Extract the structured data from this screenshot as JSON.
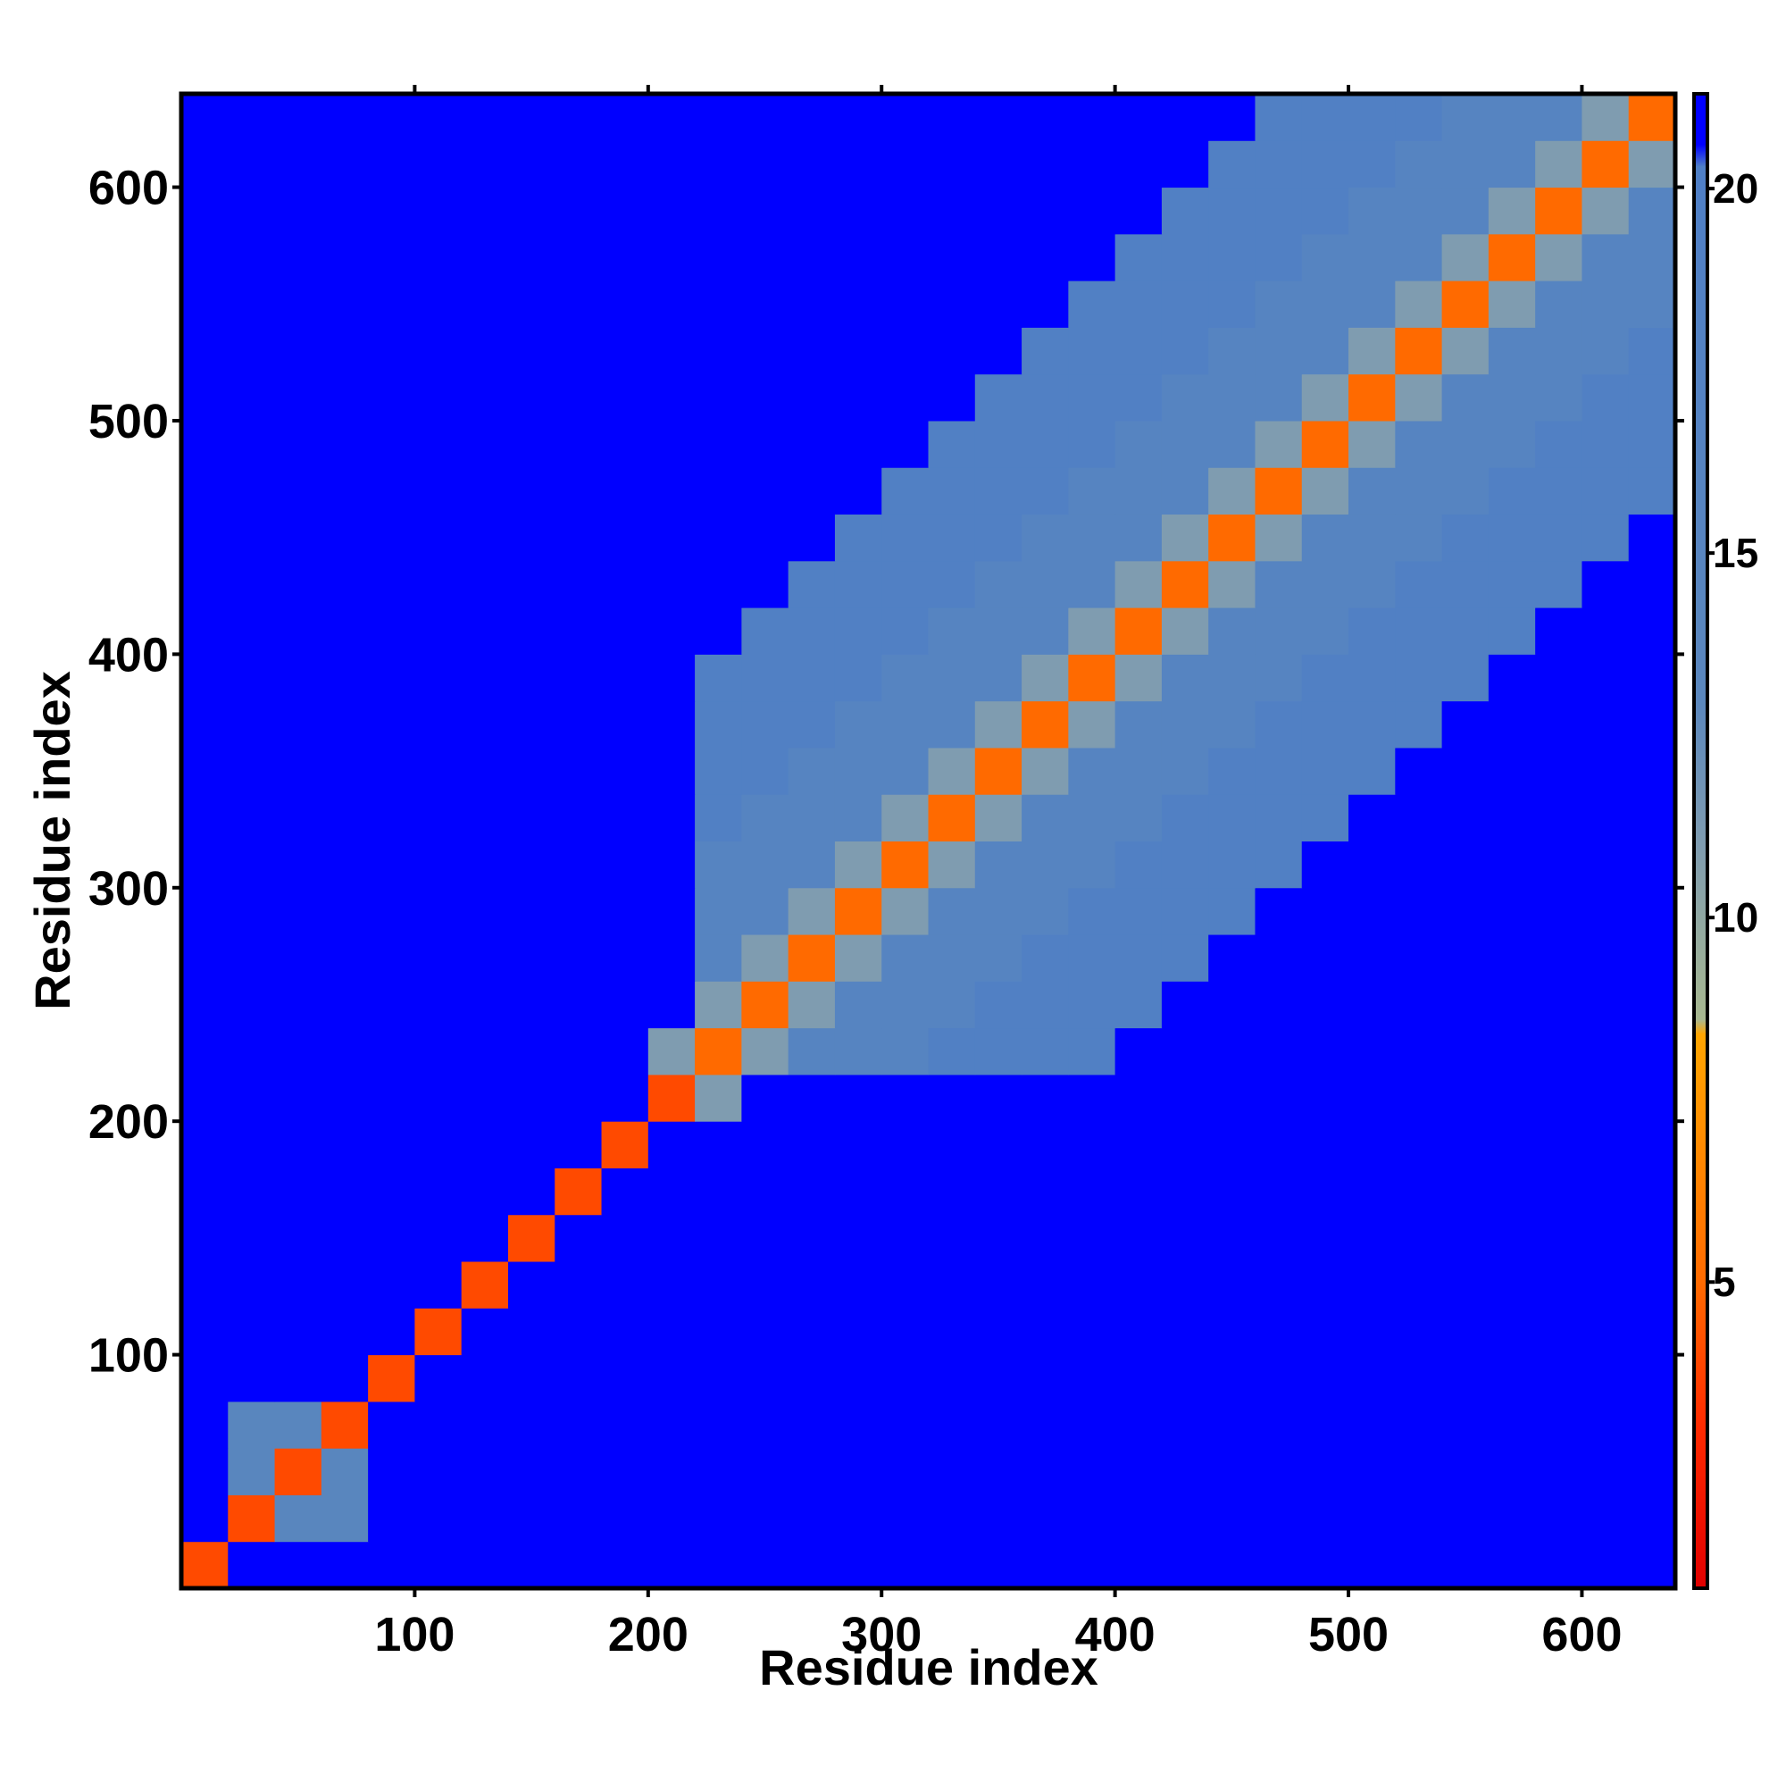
{
  "chart_data": {
    "type": "heatmap",
    "xlabel": "Residue index",
    "ylabel": "Residue index",
    "xlim": [
      0,
      640
    ],
    "ylim": [
      0,
      640
    ],
    "xticks": [
      100,
      200,
      300,
      400,
      500,
      600
    ],
    "yticks": [
      100,
      200,
      300,
      400,
      500,
      600
    ],
    "xbins": [
      0,
      20,
      40,
      60,
      80,
      100,
      120,
      140,
      160,
      180,
      200,
      220,
      240,
      260,
      280,
      300,
      320,
      340,
      360,
      380,
      400,
      420,
      440,
      460,
      480,
      500,
      520,
      540,
      560,
      580,
      600,
      620,
      640
    ],
    "ybins": [
      0,
      20,
      40,
      60,
      80,
      100,
      120,
      140,
      160,
      180,
      200,
      220,
      240,
      260,
      280,
      300,
      320,
      340,
      360,
      380,
      400,
      420,
      440,
      460,
      480,
      500,
      520,
      540,
      560,
      580,
      600,
      620,
      640
    ],
    "z": [
      [
        4,
        21,
        21,
        21,
        21,
        21,
        21,
        21,
        21,
        21,
        21,
        21,
        21,
        21,
        21,
        21,
        21,
        21,
        21,
        21,
        21,
        21,
        21,
        21,
        21,
        21,
        21,
        21,
        21,
        21,
        21,
        21
      ],
      [
        21,
        4,
        14,
        14,
        21,
        21,
        21,
        21,
        21,
        21,
        21,
        21,
        21,
        21,
        21,
        21,
        21,
        21,
        21,
        21,
        21,
        21,
        21,
        21,
        21,
        21,
        21,
        21,
        21,
        21,
        21,
        21
      ],
      [
        21,
        14,
        4,
        14,
        21,
        21,
        21,
        21,
        21,
        21,
        21,
        21,
        21,
        21,
        21,
        21,
        21,
        21,
        21,
        21,
        21,
        21,
        21,
        21,
        21,
        21,
        21,
        21,
        21,
        21,
        21,
        21
      ],
      [
        21,
        14,
        14,
        4,
        21,
        21,
        21,
        21,
        21,
        21,
        21,
        21,
        21,
        21,
        21,
        21,
        21,
        21,
        21,
        21,
        21,
        21,
        21,
        21,
        21,
        21,
        21,
        21,
        21,
        21,
        21,
        21
      ],
      [
        21,
        21,
        21,
        21,
        4,
        21,
        21,
        21,
        21,
        21,
        21,
        21,
        21,
        21,
        21,
        21,
        21,
        21,
        21,
        21,
        21,
        21,
        21,
        21,
        21,
        21,
        21,
        21,
        21,
        21,
        21,
        21
      ],
      [
        21,
        21,
        21,
        21,
        21,
        4,
        21,
        21,
        21,
        21,
        21,
        21,
        21,
        21,
        21,
        21,
        21,
        21,
        21,
        21,
        21,
        21,
        21,
        21,
        21,
        21,
        21,
        21,
        21,
        21,
        21,
        21
      ],
      [
        21,
        21,
        21,
        21,
        21,
        21,
        4,
        21,
        21,
        21,
        21,
        21,
        21,
        21,
        21,
        21,
        21,
        21,
        21,
        21,
        21,
        21,
        21,
        21,
        21,
        21,
        21,
        21,
        21,
        21,
        21,
        21
      ],
      [
        21,
        21,
        21,
        21,
        21,
        21,
        21,
        4,
        21,
        21,
        21,
        21,
        21,
        21,
        21,
        21,
        21,
        21,
        21,
        21,
        21,
        21,
        21,
        21,
        21,
        21,
        21,
        21,
        21,
        21,
        21,
        21
      ],
      [
        21,
        21,
        21,
        21,
        21,
        21,
        21,
        21,
        4,
        21,
        21,
        21,
        21,
        21,
        21,
        21,
        21,
        21,
        21,
        21,
        21,
        21,
        21,
        21,
        21,
        21,
        21,
        21,
        21,
        21,
        21,
        21
      ],
      [
        21,
        21,
        21,
        21,
        21,
        21,
        21,
        21,
        21,
        4,
        21,
        21,
        21,
        21,
        21,
        21,
        21,
        21,
        21,
        21,
        21,
        21,
        21,
        21,
        21,
        21,
        21,
        21,
        21,
        21,
        21,
        21
      ],
      [
        21,
        21,
        21,
        21,
        21,
        21,
        21,
        21,
        21,
        21,
        4,
        11,
        21,
        21,
        21,
        21,
        21,
        21,
        21,
        21,
        21,
        21,
        21,
        21,
        21,
        21,
        21,
        21,
        21,
        21,
        21,
        21
      ],
      [
        21,
        21,
        21,
        21,
        21,
        21,
        21,
        21,
        21,
        21,
        11,
        5,
        11,
        16,
        16,
        16,
        19,
        19,
        19,
        19,
        21,
        21,
        21,
        21,
        21,
        21,
        21,
        21,
        21,
        21,
        21,
        21
      ],
      [
        21,
        21,
        21,
        21,
        21,
        21,
        21,
        21,
        21,
        21,
        21,
        11,
        5,
        11,
        16,
        16,
        16,
        19,
        19,
        19,
        19,
        21,
        21,
        21,
        21,
        21,
        21,
        21,
        21,
        21,
        21,
        21
      ],
      [
        21,
        21,
        21,
        21,
        21,
        21,
        21,
        21,
        21,
        21,
        21,
        16,
        11,
        5,
        11,
        16,
        16,
        16,
        19,
        19,
        19,
        19,
        21,
        21,
        21,
        21,
        21,
        21,
        21,
        21,
        21,
        21
      ],
      [
        21,
        21,
        21,
        21,
        21,
        21,
        21,
        21,
        21,
        21,
        21,
        16,
        16,
        11,
        5,
        11,
        16,
        16,
        16,
        19,
        19,
        19,
        19,
        21,
        21,
        21,
        21,
        21,
        21,
        21,
        21,
        21
      ],
      [
        21,
        21,
        21,
        21,
        21,
        21,
        21,
        21,
        21,
        21,
        21,
        16,
        16,
        16,
        11,
        5,
        11,
        16,
        16,
        16,
        19,
        19,
        19,
        19,
        21,
        21,
        21,
        21,
        21,
        21,
        21,
        21
      ],
      [
        21,
        21,
        21,
        21,
        21,
        21,
        21,
        21,
        21,
        21,
        21,
        19,
        16,
        16,
        16,
        11,
        5,
        11,
        16,
        16,
        16,
        19,
        19,
        19,
        19,
        21,
        21,
        21,
        21,
        21,
        21,
        21
      ],
      [
        21,
        21,
        21,
        21,
        21,
        21,
        21,
        21,
        21,
        21,
        21,
        19,
        19,
        16,
        16,
        16,
        11,
        5,
        11,
        16,
        16,
        16,
        19,
        19,
        19,
        19,
        21,
        21,
        21,
        21,
        21,
        21
      ],
      [
        21,
        21,
        21,
        21,
        21,
        21,
        21,
        21,
        21,
        21,
        21,
        19,
        19,
        19,
        16,
        16,
        16,
        11,
        5,
        11,
        16,
        16,
        16,
        19,
        19,
        19,
        19,
        21,
        21,
        21,
        21,
        21
      ],
      [
        21,
        21,
        21,
        21,
        21,
        21,
        21,
        21,
        21,
        21,
        21,
        19,
        19,
        19,
        19,
        16,
        16,
        16,
        11,
        5,
        11,
        16,
        16,
        16,
        19,
        19,
        19,
        19,
        21,
        21,
        21,
        21
      ],
      [
        21,
        21,
        21,
        21,
        21,
        21,
        21,
        21,
        21,
        21,
        21,
        21,
        19,
        19,
        19,
        19,
        16,
        16,
        16,
        11,
        5,
        11,
        16,
        16,
        16,
        19,
        19,
        19,
        19,
        21,
        21,
        21
      ],
      [
        21,
        21,
        21,
        21,
        21,
        21,
        21,
        21,
        21,
        21,
        21,
        21,
        21,
        19,
        19,
        19,
        19,
        16,
        16,
        16,
        11,
        5,
        11,
        16,
        16,
        16,
        19,
        19,
        19,
        19,
        21,
        21
      ],
      [
        21,
        21,
        21,
        21,
        21,
        21,
        21,
        21,
        21,
        21,
        21,
        21,
        21,
        21,
        19,
        19,
        19,
        19,
        16,
        16,
        16,
        11,
        5,
        11,
        16,
        16,
        16,
        19,
        19,
        19,
        19,
        21
      ],
      [
        21,
        21,
        21,
        21,
        21,
        21,
        21,
        21,
        21,
        21,
        21,
        21,
        21,
        21,
        21,
        19,
        19,
        19,
        19,
        16,
        16,
        16,
        11,
        5,
        11,
        16,
        16,
        16,
        19,
        19,
        19,
        19
      ],
      [
        21,
        21,
        21,
        21,
        21,
        21,
        21,
        21,
        21,
        21,
        21,
        21,
        21,
        21,
        21,
        21,
        19,
        19,
        19,
        19,
        16,
        16,
        16,
        11,
        5,
        11,
        16,
        16,
        16,
        19,
        19,
        19
      ],
      [
        21,
        21,
        21,
        21,
        21,
        21,
        21,
        21,
        21,
        21,
        21,
        21,
        21,
        21,
        21,
        21,
        21,
        19,
        19,
        19,
        19,
        16,
        16,
        16,
        11,
        5,
        11,
        16,
        16,
        16,
        19,
        19
      ],
      [
        21,
        21,
        21,
        21,
        21,
        21,
        21,
        21,
        21,
        21,
        21,
        21,
        21,
        21,
        21,
        21,
        21,
        21,
        19,
        19,
        19,
        19,
        16,
        16,
        16,
        11,
        5,
        11,
        16,
        16,
        16,
        19
      ],
      [
        21,
        21,
        21,
        21,
        21,
        21,
        21,
        21,
        21,
        21,
        21,
        21,
        21,
        21,
        21,
        21,
        21,
        21,
        21,
        19,
        19,
        19,
        19,
        16,
        16,
        16,
        11,
        5,
        11,
        16,
        16,
        16
      ],
      [
        21,
        21,
        21,
        21,
        21,
        21,
        21,
        21,
        21,
        21,
        21,
        21,
        21,
        21,
        21,
        21,
        21,
        21,
        21,
        21,
        19,
        19,
        19,
        19,
        16,
        16,
        16,
        11,
        5,
        11,
        16,
        16
      ],
      [
        21,
        21,
        21,
        21,
        21,
        21,
        21,
        21,
        21,
        21,
        21,
        21,
        21,
        21,
        21,
        21,
        21,
        21,
        21,
        21,
        21,
        19,
        19,
        19,
        19,
        16,
        16,
        16,
        11,
        5,
        11,
        16
      ],
      [
        21,
        21,
        21,
        21,
        21,
        21,
        21,
        21,
        21,
        21,
        21,
        21,
        21,
        21,
        21,
        21,
        21,
        21,
        21,
        21,
        21,
        21,
        19,
        19,
        19,
        19,
        16,
        16,
        16,
        11,
        5,
        11
      ],
      [
        21,
        21,
        21,
        21,
        21,
        21,
        21,
        21,
        21,
        21,
        21,
        21,
        21,
        21,
        21,
        21,
        21,
        21,
        21,
        21,
        21,
        21,
        21,
        19,
        19,
        19,
        19,
        16,
        16,
        16,
        11,
        5
      ]
    ],
    "colorscale": [
      {
        "value": 0.8,
        "color": "#e00000"
      },
      {
        "value": 3,
        "color": "#ff2a00"
      },
      {
        "value": 5,
        "color": "#ff6a00"
      },
      {
        "value": 8.4,
        "color": "#ffa500"
      },
      {
        "value": 8.6,
        "color": "#a8b890"
      },
      {
        "value": 11,
        "color": "#7f9cb0"
      },
      {
        "value": 13,
        "color": "#5b87bd"
      },
      {
        "value": 20.3,
        "color": "#4f7fc6"
      },
      {
        "value": 20.6,
        "color": "#0000ff"
      },
      {
        "value": 21.3,
        "color": "#0000ff"
      }
    ],
    "colorbar": {
      "lim": [
        0.8,
        21.3
      ],
      "ticks": [
        5,
        10,
        15,
        20
      ]
    }
  }
}
